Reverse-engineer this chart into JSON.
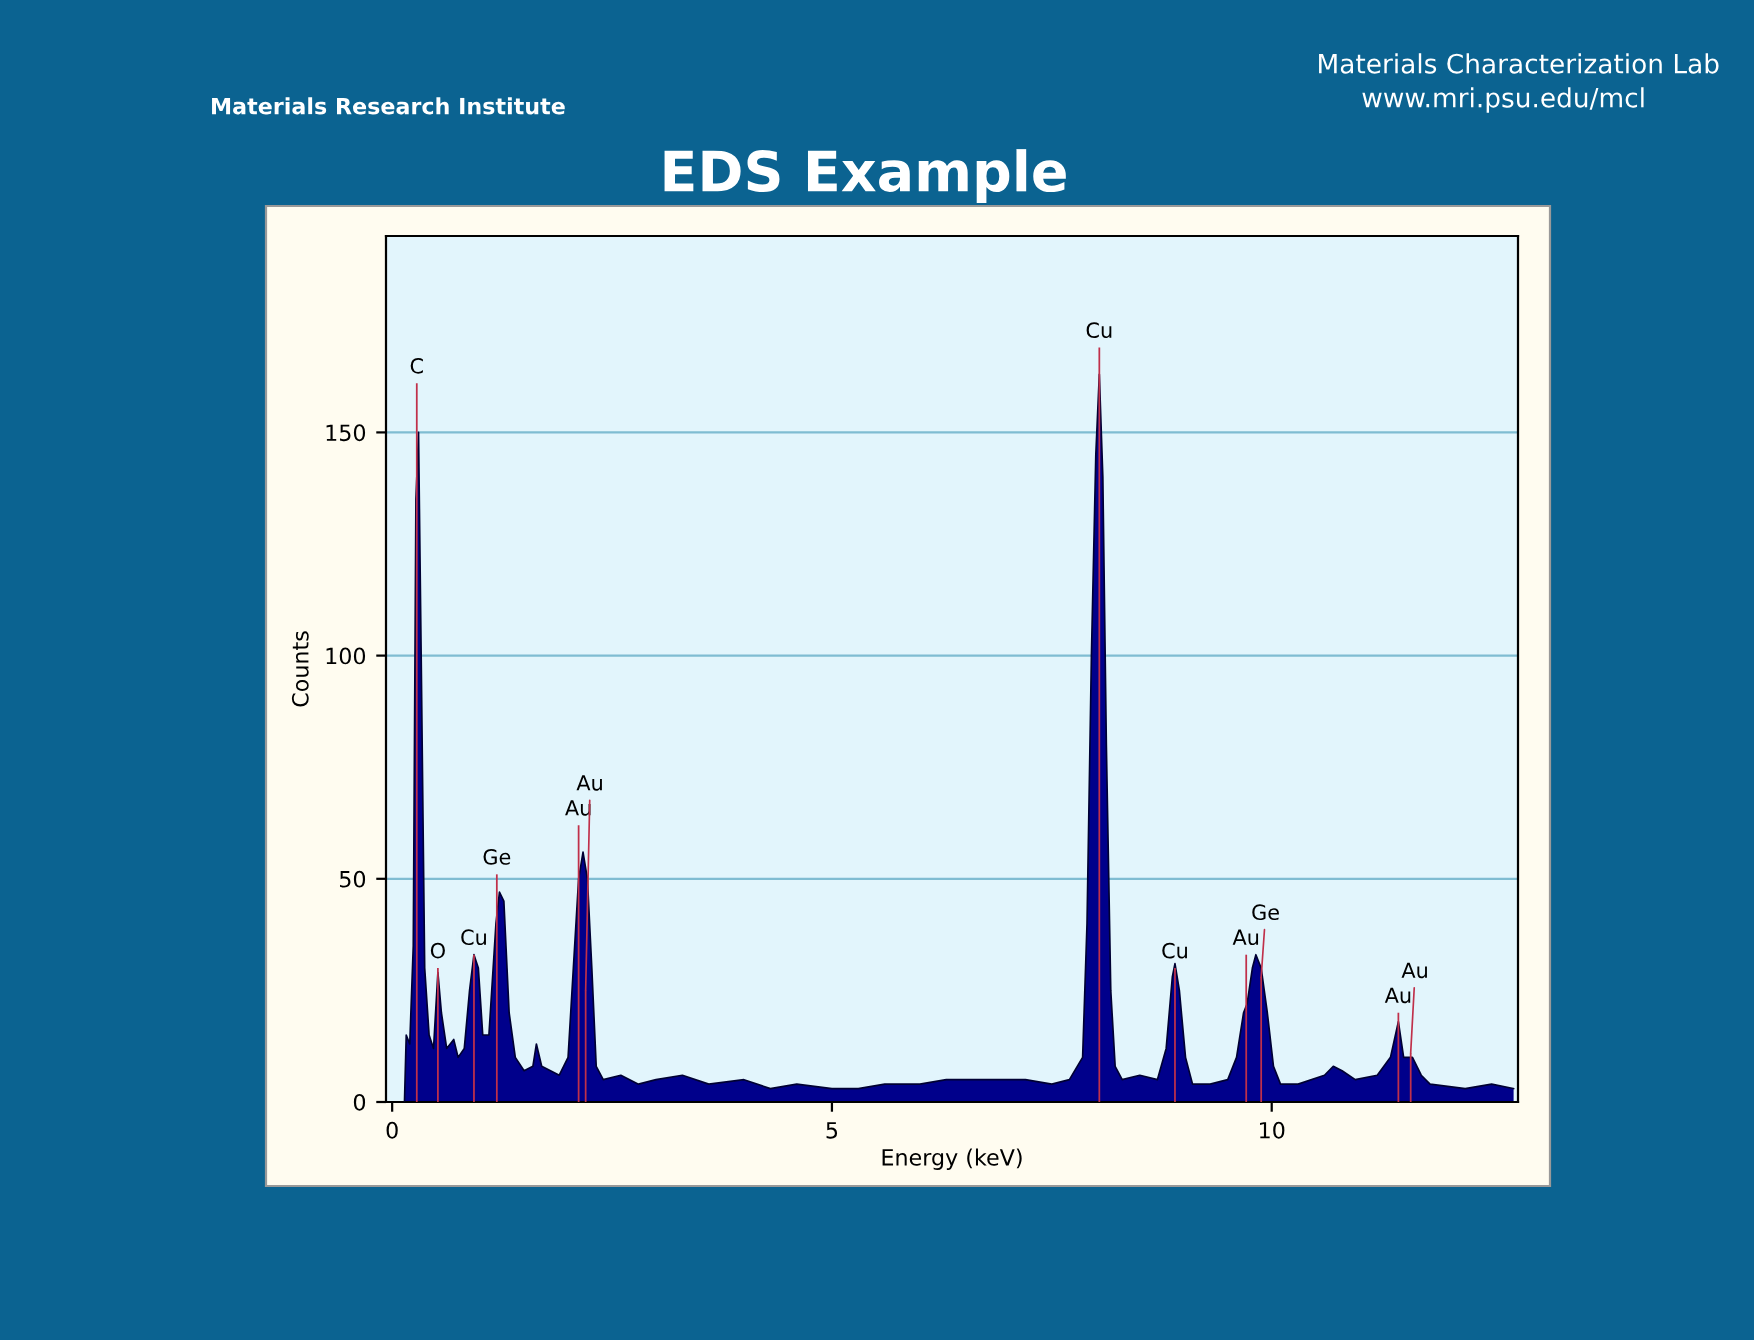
{
  "chart_data": {
    "type": "area",
    "title": "EDS Example",
    "xlabel": "Energy (keV)",
    "ylabel": "Counts",
    "xlim": [
      -0.07,
      12.8
    ],
    "ylim": [
      0,
      194
    ],
    "xticks": [
      0,
      5,
      10
    ],
    "yticks": [
      0,
      50,
      100,
      150
    ],
    "grid": "y",
    "series": [
      {
        "color": "#00008b",
        "x": [
          0.14,
          0.16,
          0.2,
          0.24,
          0.27,
          0.3,
          0.33,
          0.37,
          0.42,
          0.47,
          0.52,
          0.56,
          0.62,
          0.7,
          0.75,
          0.82,
          0.88,
          0.93,
          0.98,
          1.03,
          1.1,
          1.18,
          1.22,
          1.27,
          1.33,
          1.4,
          1.5,
          1.6,
          1.64,
          1.7,
          1.8,
          1.9,
          2.0,
          2.06,
          2.12,
          2.17,
          2.22,
          2.27,
          2.32,
          2.4,
          2.6,
          2.8,
          3.0,
          3.3,
          3.6,
          4.0,
          4.3,
          4.6,
          5.0,
          5.3,
          5.6,
          6.0,
          6.3,
          6.6,
          6.9,
          7.2,
          7.5,
          7.7,
          7.85,
          7.9,
          7.95,
          8.0,
          8.04,
          8.08,
          8.12,
          8.17,
          8.22,
          8.3,
          8.5,
          8.7,
          8.8,
          8.87,
          8.9,
          8.95,
          9.02,
          9.1,
          9.3,
          9.5,
          9.6,
          9.68,
          9.72,
          9.78,
          9.82,
          9.88,
          9.95,
          10.02,
          10.1,
          10.3,
          10.6,
          10.7,
          10.8,
          10.95,
          11.2,
          11.35,
          11.44,
          11.5,
          11.6,
          11.7,
          11.8,
          12.2,
          12.5,
          12.75
        ],
        "values": [
          0,
          15,
          13,
          35,
          135,
          150,
          100,
          30,
          15,
          12,
          29,
          20,
          12,
          14,
          10,
          12,
          25,
          33,
          30,
          15,
          15,
          40,
          47,
          45,
          20,
          10,
          7,
          8,
          13,
          8,
          7,
          6,
          10,
          30,
          50,
          56,
          50,
          30,
          8,
          5,
          6,
          4,
          5,
          6,
          4,
          5,
          3,
          4,
          3,
          3,
          4,
          4,
          5,
          5,
          5,
          5,
          4,
          5,
          10,
          40,
          100,
          145,
          163,
          140,
          80,
          25,
          8,
          5,
          6,
          5,
          12,
          28,
          31,
          25,
          10,
          4,
          4,
          5,
          10,
          20,
          22,
          30,
          33,
          30,
          20,
          8,
          4,
          4,
          6,
          8,
          7,
          5,
          6,
          10,
          18,
          10,
          10,
          6,
          4,
          3,
          4,
          3
        ]
      },
      {
        "type": "bar",
        "color": "#c0304a",
        "x": [
          0.28,
          0.52,
          0.93,
          1.19,
          2.12,
          2.2,
          8.04,
          8.9,
          9.71,
          9.88,
          11.44,
          11.58
        ],
        "values": [
          161,
          30,
          33,
          51,
          62,
          25,
          169,
          30,
          33,
          28,
          20,
          11
        ]
      }
    ],
    "annotations": [
      {
        "text": "C",
        "x": 0.28,
        "y": 161
      },
      {
        "text": "O",
        "x": 0.52,
        "y": 30
      },
      {
        "text": "Cu",
        "x": 0.93,
        "y": 33
      },
      {
        "text": "Ge",
        "x": 1.19,
        "y": 51
      },
      {
        "text": "Au",
        "x": 2.12,
        "y": 62
      },
      {
        "text": "Au",
        "x": 2.2,
        "y": 25
      },
      {
        "text": "Cu",
        "x": 8.04,
        "y": 169
      },
      {
        "text": "Cu",
        "x": 8.9,
        "y": 30
      },
      {
        "text": "Au",
        "x": 9.71,
        "y": 33
      },
      {
        "text": "Ge",
        "x": 9.88,
        "y": 28
      },
      {
        "text": "Au",
        "x": 11.44,
        "y": 20
      },
      {
        "text": "Au",
        "x": 11.58,
        "y": 11
      },
      "Materials Characterization Lab",
      "www.mri.psu.edu/mcl",
      "Materials Research Institute"
    ]
  }
}
